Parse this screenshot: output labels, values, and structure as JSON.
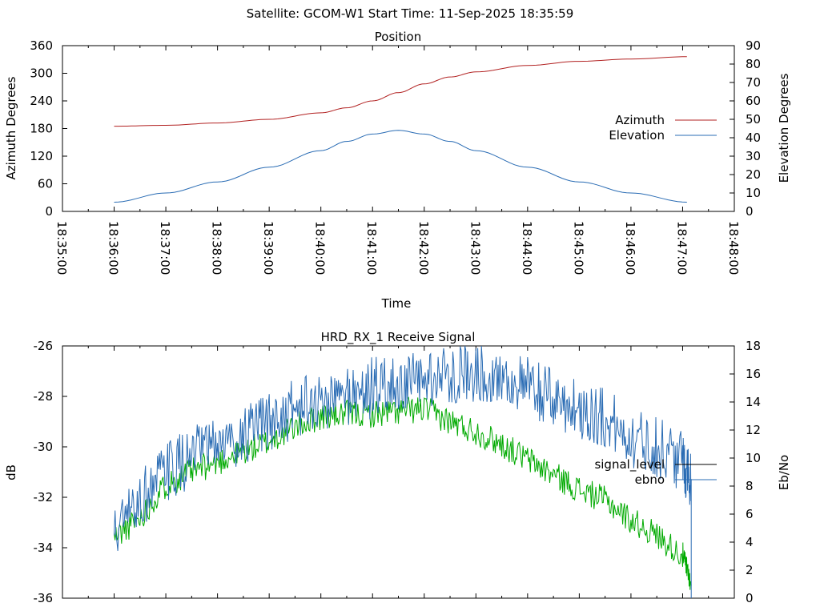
{
  "header": {
    "title": "Satellite: GCOM-W1    Start Time: 11-Sep-2025 18:35:59"
  },
  "chart_data": [
    {
      "type": "line",
      "title": "Position",
      "xlabel": "Time",
      "ylabel": "Azimuth Degrees",
      "y2label": "Elevation Degrees",
      "xlim": [
        "18:35:00",
        "18:48:00"
      ],
      "ylim": [
        0,
        360
      ],
      "y2lim": [
        0,
        90
      ],
      "x_ticks": [
        "18:35:00",
        "18:36:00",
        "18:37:00",
        "18:38:00",
        "18:39:00",
        "18:40:00",
        "18:41:00",
        "18:42:00",
        "18:43:00",
        "18:44:00",
        "18:45:00",
        "18:46:00",
        "18:47:00",
        "18:48:00"
      ],
      "y_ticks": [
        "0",
        "60",
        "120",
        "180",
        "240",
        "300",
        "360"
      ],
      "y2_ticks": [
        "0",
        "10",
        "20",
        "30",
        "40",
        "50",
        "60",
        "70",
        "80",
        "90"
      ],
      "legend_position": "right",
      "series": [
        {
          "name": "Azimuth",
          "axis": "y",
          "color": "#b22222",
          "x": [
            "18:36:00",
            "18:37:00",
            "18:38:00",
            "18:39:00",
            "18:40:00",
            "18:40:30",
            "18:41:00",
            "18:41:30",
            "18:42:00",
            "18:42:30",
            "18:43:00",
            "18:44:00",
            "18:45:00",
            "18:46:00",
            "18:47:05"
          ],
          "y": [
            185,
            187,
            192,
            200,
            214,
            225,
            240,
            258,
            277,
            292,
            303,
            317,
            326,
            331,
            336
          ]
        },
        {
          "name": "Elevation",
          "axis": "y2",
          "color": "#2a6cb4",
          "x": [
            "18:36:00",
            "18:37:00",
            "18:38:00",
            "18:39:00",
            "18:40:00",
            "18:40:30",
            "18:41:00",
            "18:41:30",
            "18:42:00",
            "18:42:30",
            "18:43:00",
            "18:44:00",
            "18:45:00",
            "18:46:00",
            "18:47:05"
          ],
          "y": [
            5,
            10,
            16,
            24,
            33,
            38,
            42,
            44,
            42,
            38,
            33,
            24,
            16,
            10,
            5
          ]
        }
      ]
    },
    {
      "type": "line",
      "title": "HRD_RX_1 Receive Signal",
      "xlabel": "",
      "ylabel": "dB",
      "y2label": "Eb/No",
      "xlim": [
        "18:35:00",
        "18:48:00"
      ],
      "ylim": [
        -36,
        -26
      ],
      "y2lim": [
        0,
        18
      ],
      "y_ticks": [
        "-26",
        "-28",
        "-30",
        "-32",
        "-34",
        "-36"
      ],
      "y2_ticks": [
        "0",
        "2",
        "4",
        "6",
        "8",
        "10",
        "12",
        "14",
        "16",
        "18"
      ],
      "legend_position": "right",
      "series": [
        {
          "name": "signal_level",
          "axis": "y",
          "color": "#00aa00",
          "x": [
            "18:36:00",
            "18:36:30",
            "18:37:00",
            "18:37:30",
            "18:38:00",
            "18:38:30",
            "18:39:00",
            "18:39:30",
            "18:40:00",
            "18:40:30",
            "18:41:00",
            "18:41:30",
            "18:42:00",
            "18:42:30",
            "18:43:00",
            "18:43:30",
            "18:44:00",
            "18:44:30",
            "18:45:00",
            "18:45:30",
            "18:46:00",
            "18:46:30",
            "18:47:00",
            "18:47:10"
          ],
          "y": [
            -33.6,
            -32.8,
            -31.5,
            -31.0,
            -30.6,
            -30.2,
            -29.8,
            -29.2,
            -28.8,
            -28.7,
            -28.7,
            -28.6,
            -28.5,
            -29.0,
            -29.4,
            -29.9,
            -30.5,
            -31.1,
            -31.7,
            -32.1,
            -32.9,
            -33.5,
            -34.3,
            -35.5
          ]
        },
        {
          "name": "ebno",
          "axis": "y2",
          "color": "#2a6cb4",
          "x": [
            "18:36:00",
            "18:36:30",
            "18:37:00",
            "18:37:30",
            "18:38:00",
            "18:38:30",
            "18:39:00",
            "18:39:30",
            "18:40:00",
            "18:40:30",
            "18:41:00",
            "18:41:30",
            "18:42:00",
            "18:42:30",
            "18:43:00",
            "18:43:30",
            "18:44:00",
            "18:44:30",
            "18:45:00",
            "18:45:30",
            "18:46:00",
            "18:46:30",
            "18:47:00",
            "18:47:10"
          ],
          "y": [
            4.5,
            7.0,
            9.0,
            10.0,
            11.0,
            11.5,
            12.5,
            13.5,
            14.0,
            14.5,
            15.0,
            15.2,
            15.5,
            16.0,
            16.2,
            15.8,
            15.0,
            14.2,
            13.5,
            12.8,
            11.5,
            10.8,
            9.8,
            8.5
          ]
        }
      ]
    }
  ]
}
